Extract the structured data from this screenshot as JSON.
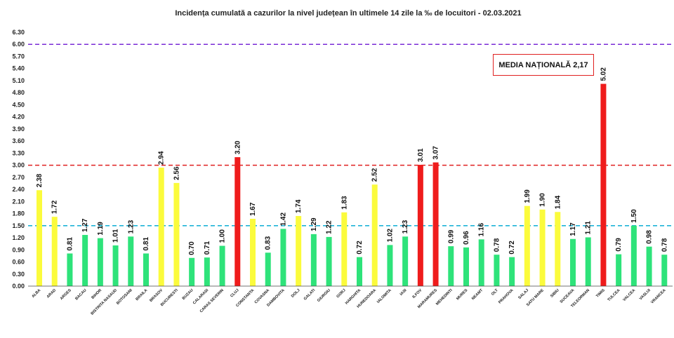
{
  "chart_data": {
    "type": "bar",
    "title": "Incidența cumulată a cazurilor la nivel județean în ultimele 14 zile la ‰ de locuitori - 02.03.2021",
    "annotation": "MEDIA NAȚIONALĂ 2,17",
    "ylim": [
      0,
      6.3
    ],
    "yticks": [
      "0.00",
      "0.30",
      "0.60",
      "0.90",
      "1.20",
      "1.50",
      "1.80",
      "2.10",
      "2.40",
      "2.70",
      "3.00",
      "3.30",
      "3.60",
      "3.90",
      "4.20",
      "4.50",
      "4.80",
      "5.10",
      "5.40",
      "5.70",
      "6.00",
      "6.30"
    ],
    "grid": false,
    "reference_lines": [
      {
        "value": 1.5,
        "color": "#1fb4d8"
      },
      {
        "value": 3.0,
        "color": "#e02020"
      },
      {
        "value": 6.0,
        "color": "#7a2bd6"
      }
    ],
    "categories": [
      "ALBA",
      "ARAD",
      "ARGES",
      "BACAU",
      "BIHOR",
      "BISTRITA NASAUD",
      "BOTOSANI",
      "BRAILA",
      "BRASOV",
      "BUCURESTI",
      "BUZAU",
      "CALARASI",
      "CARAS SEVERIN",
      "CLUJ",
      "CONSTANTA",
      "COVASNA",
      "DAMBOVITA",
      "DOLJ",
      "GALATI",
      "GIURGIU",
      "GORJ",
      "HARGHITA",
      "HUNEDOARA",
      "IALOMITA",
      "IASI",
      "ILFOV",
      "MARAMURES",
      "MEHEDINTI",
      "MURES",
      "NEAMT",
      "OLT",
      "PRAHOVA",
      "SALAJ",
      "SATU MARE",
      "SIBIU",
      "SUCEAVA",
      "TELEORMAN",
      "TIMIS",
      "TULCEA",
      "VALCEA",
      "VASLUI",
      "VRANCEA"
    ],
    "values": [
      2.38,
      1.72,
      0.81,
      1.27,
      1.19,
      1.01,
      1.23,
      0.81,
      2.94,
      2.56,
      0.7,
      0.71,
      1.0,
      3.2,
      1.67,
      0.83,
      1.42,
      1.74,
      1.29,
      1.22,
      1.83,
      0.72,
      2.52,
      1.02,
      1.23,
      3.01,
      3.07,
      0.99,
      0.96,
      1.16,
      0.78,
      0.72,
      1.99,
      1.9,
      1.84,
      1.17,
      1.21,
      5.02,
      0.79,
      1.5,
      0.98,
      0.78
    ],
    "value_labels": [
      "2.38",
      "1.72",
      "0.81",
      "1.27",
      "1.19",
      "1.01",
      "1.23",
      "0.81",
      "2.94",
      "2.56",
      "0.70",
      "0.71",
      "1.00",
      "3.20",
      "1.67",
      "0.83",
      "1.42",
      "1.74",
      "1.29",
      "1.22",
      "1.83",
      "0.72",
      "2.52",
      "1.02",
      "1.23",
      "3.01",
      "3.07",
      "0.99",
      "0.96",
      "1.16",
      "0.78",
      "0.72",
      "1.99",
      "1.90",
      "1.84",
      "1.17",
      "1.21",
      "5.02",
      "0.79",
      "1.50",
      "0.98",
      "0.78"
    ],
    "colors": {
      "green": "#2ee37a",
      "yellow": "#fbfb3c",
      "red": "#ef1c1c"
    },
    "color_thresholds": [
      1.5,
      3.0
    ]
  }
}
